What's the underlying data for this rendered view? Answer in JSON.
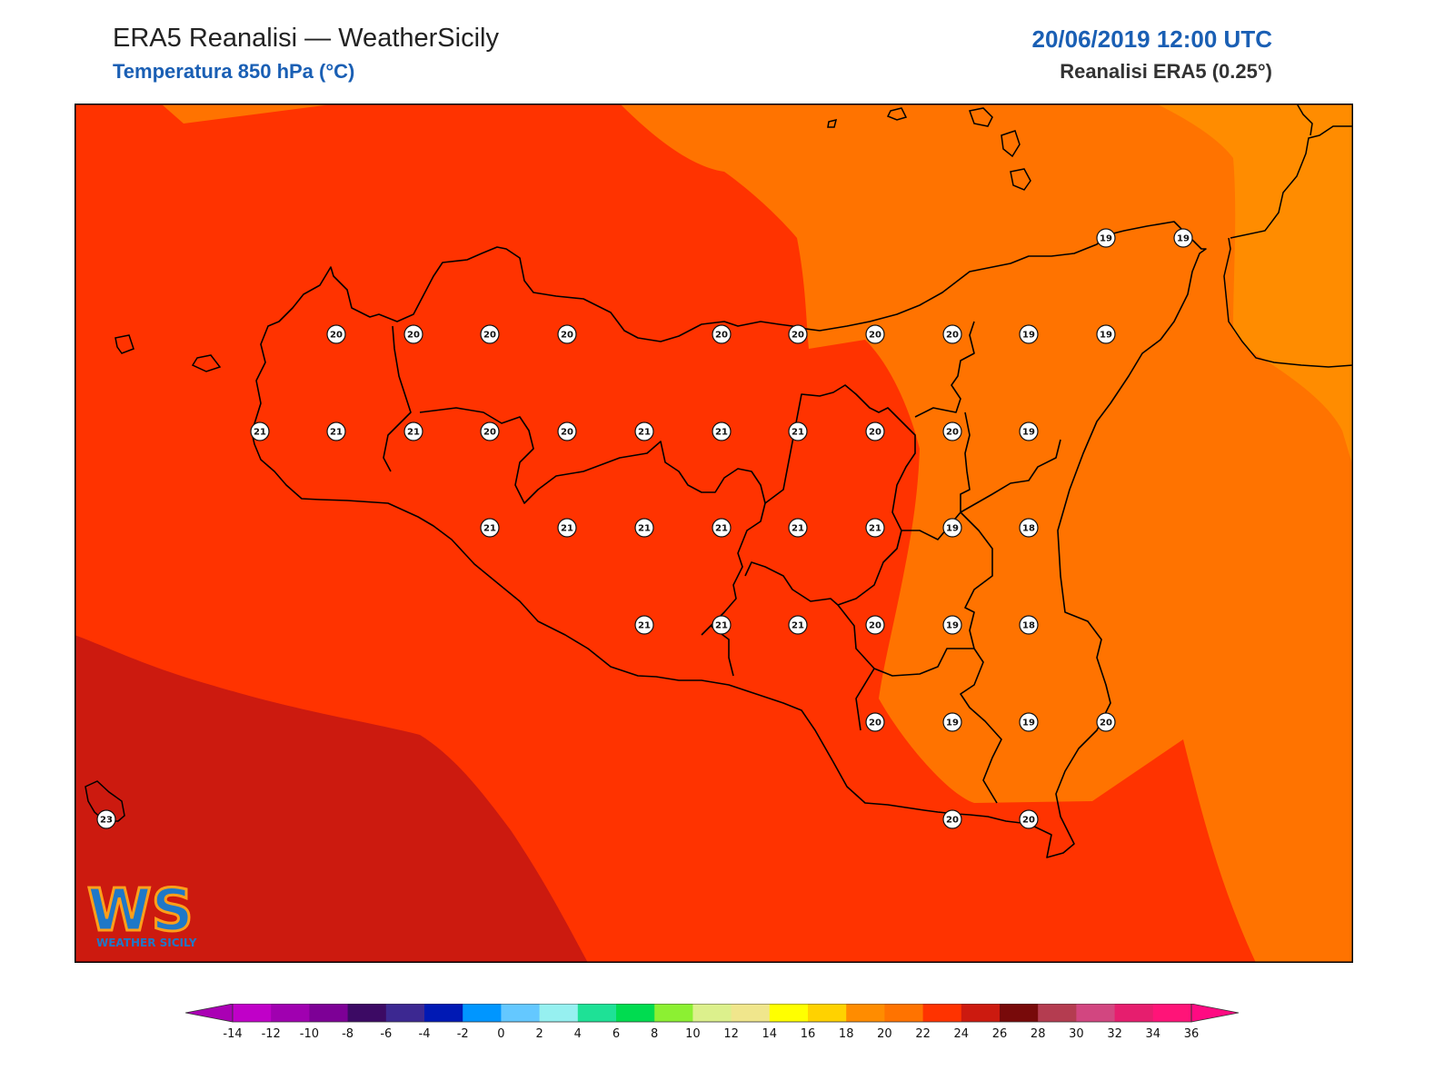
{
  "header": {
    "title": "ERA5 Reanalisi — WeatherSicily",
    "subtitle": "Temperatura 850 hPa (°C)",
    "datetime": "20/06/2019 12:00 UTC",
    "source": "Reanalisi ERA5 (0.25°)"
  },
  "colors": {
    "accent_blue": "#1a5fb4",
    "band_16_18": "#ff8c00",
    "band_18_20": "#ff7300",
    "band_20_22": "#ff3300",
    "band_22_24": "#cc1a0f"
  },
  "stations": [
    {
      "value": "19"
    },
    {
      "value": "19"
    },
    {
      "value": "20"
    },
    {
      "value": "20"
    },
    {
      "value": "20"
    },
    {
      "value": "20"
    },
    {
      "value": "20"
    },
    {
      "value": "20"
    },
    {
      "value": "20"
    },
    {
      "value": "20"
    },
    {
      "value": "19"
    },
    {
      "value": "19"
    },
    {
      "value": "21"
    },
    {
      "value": "21"
    },
    {
      "value": "21"
    },
    {
      "value": "20"
    },
    {
      "value": "20"
    },
    {
      "value": "21"
    },
    {
      "value": "21"
    },
    {
      "value": "21"
    },
    {
      "value": "20"
    },
    {
      "value": "20"
    },
    {
      "value": "19"
    },
    {
      "value": "21"
    },
    {
      "value": "21"
    },
    {
      "value": "21"
    },
    {
      "value": "21"
    },
    {
      "value": "21"
    },
    {
      "value": "21"
    },
    {
      "value": "19"
    },
    {
      "value": "18"
    },
    {
      "value": "21"
    },
    {
      "value": "21"
    },
    {
      "value": "21"
    },
    {
      "value": "20"
    },
    {
      "value": "19"
    },
    {
      "value": "18"
    },
    {
      "value": "20"
    },
    {
      "value": "19"
    },
    {
      "value": "19"
    },
    {
      "value": "20"
    },
    {
      "value": "23"
    },
    {
      "value": "20"
    },
    {
      "value": "20"
    }
  ],
  "legend": {
    "ticks": [
      "-14",
      "-12",
      "-10",
      "-8",
      "-6",
      "-4",
      "-2",
      "0",
      "2",
      "4",
      "6",
      "8",
      "10",
      "12",
      "14",
      "16",
      "18",
      "20",
      "22",
      "24",
      "26",
      "28",
      "30",
      "32",
      "34",
      "36"
    ],
    "colors": [
      "#c000c8",
      "#a000b0",
      "#7d0096",
      "#3c0a64",
      "#3c2891",
      "#0019b4",
      "#0096ff",
      "#64c8ff",
      "#96f0f0",
      "#1ee196",
      "#00dc50",
      "#8cf032",
      "#dcf08c",
      "#f0e68c",
      "#ffff00",
      "#ffd200",
      "#ff8c00",
      "#ff7300",
      "#ff3300",
      "#cc1a0f",
      "#780a0a",
      "#b43c50",
      "#d24680",
      "#e61e6e",
      "#ff1478"
    ],
    "under_color": "#aa00b4",
    "over_color": "#ff0a82"
  },
  "logo": {
    "letters": "WS",
    "text": "WEATHER SICILY"
  }
}
